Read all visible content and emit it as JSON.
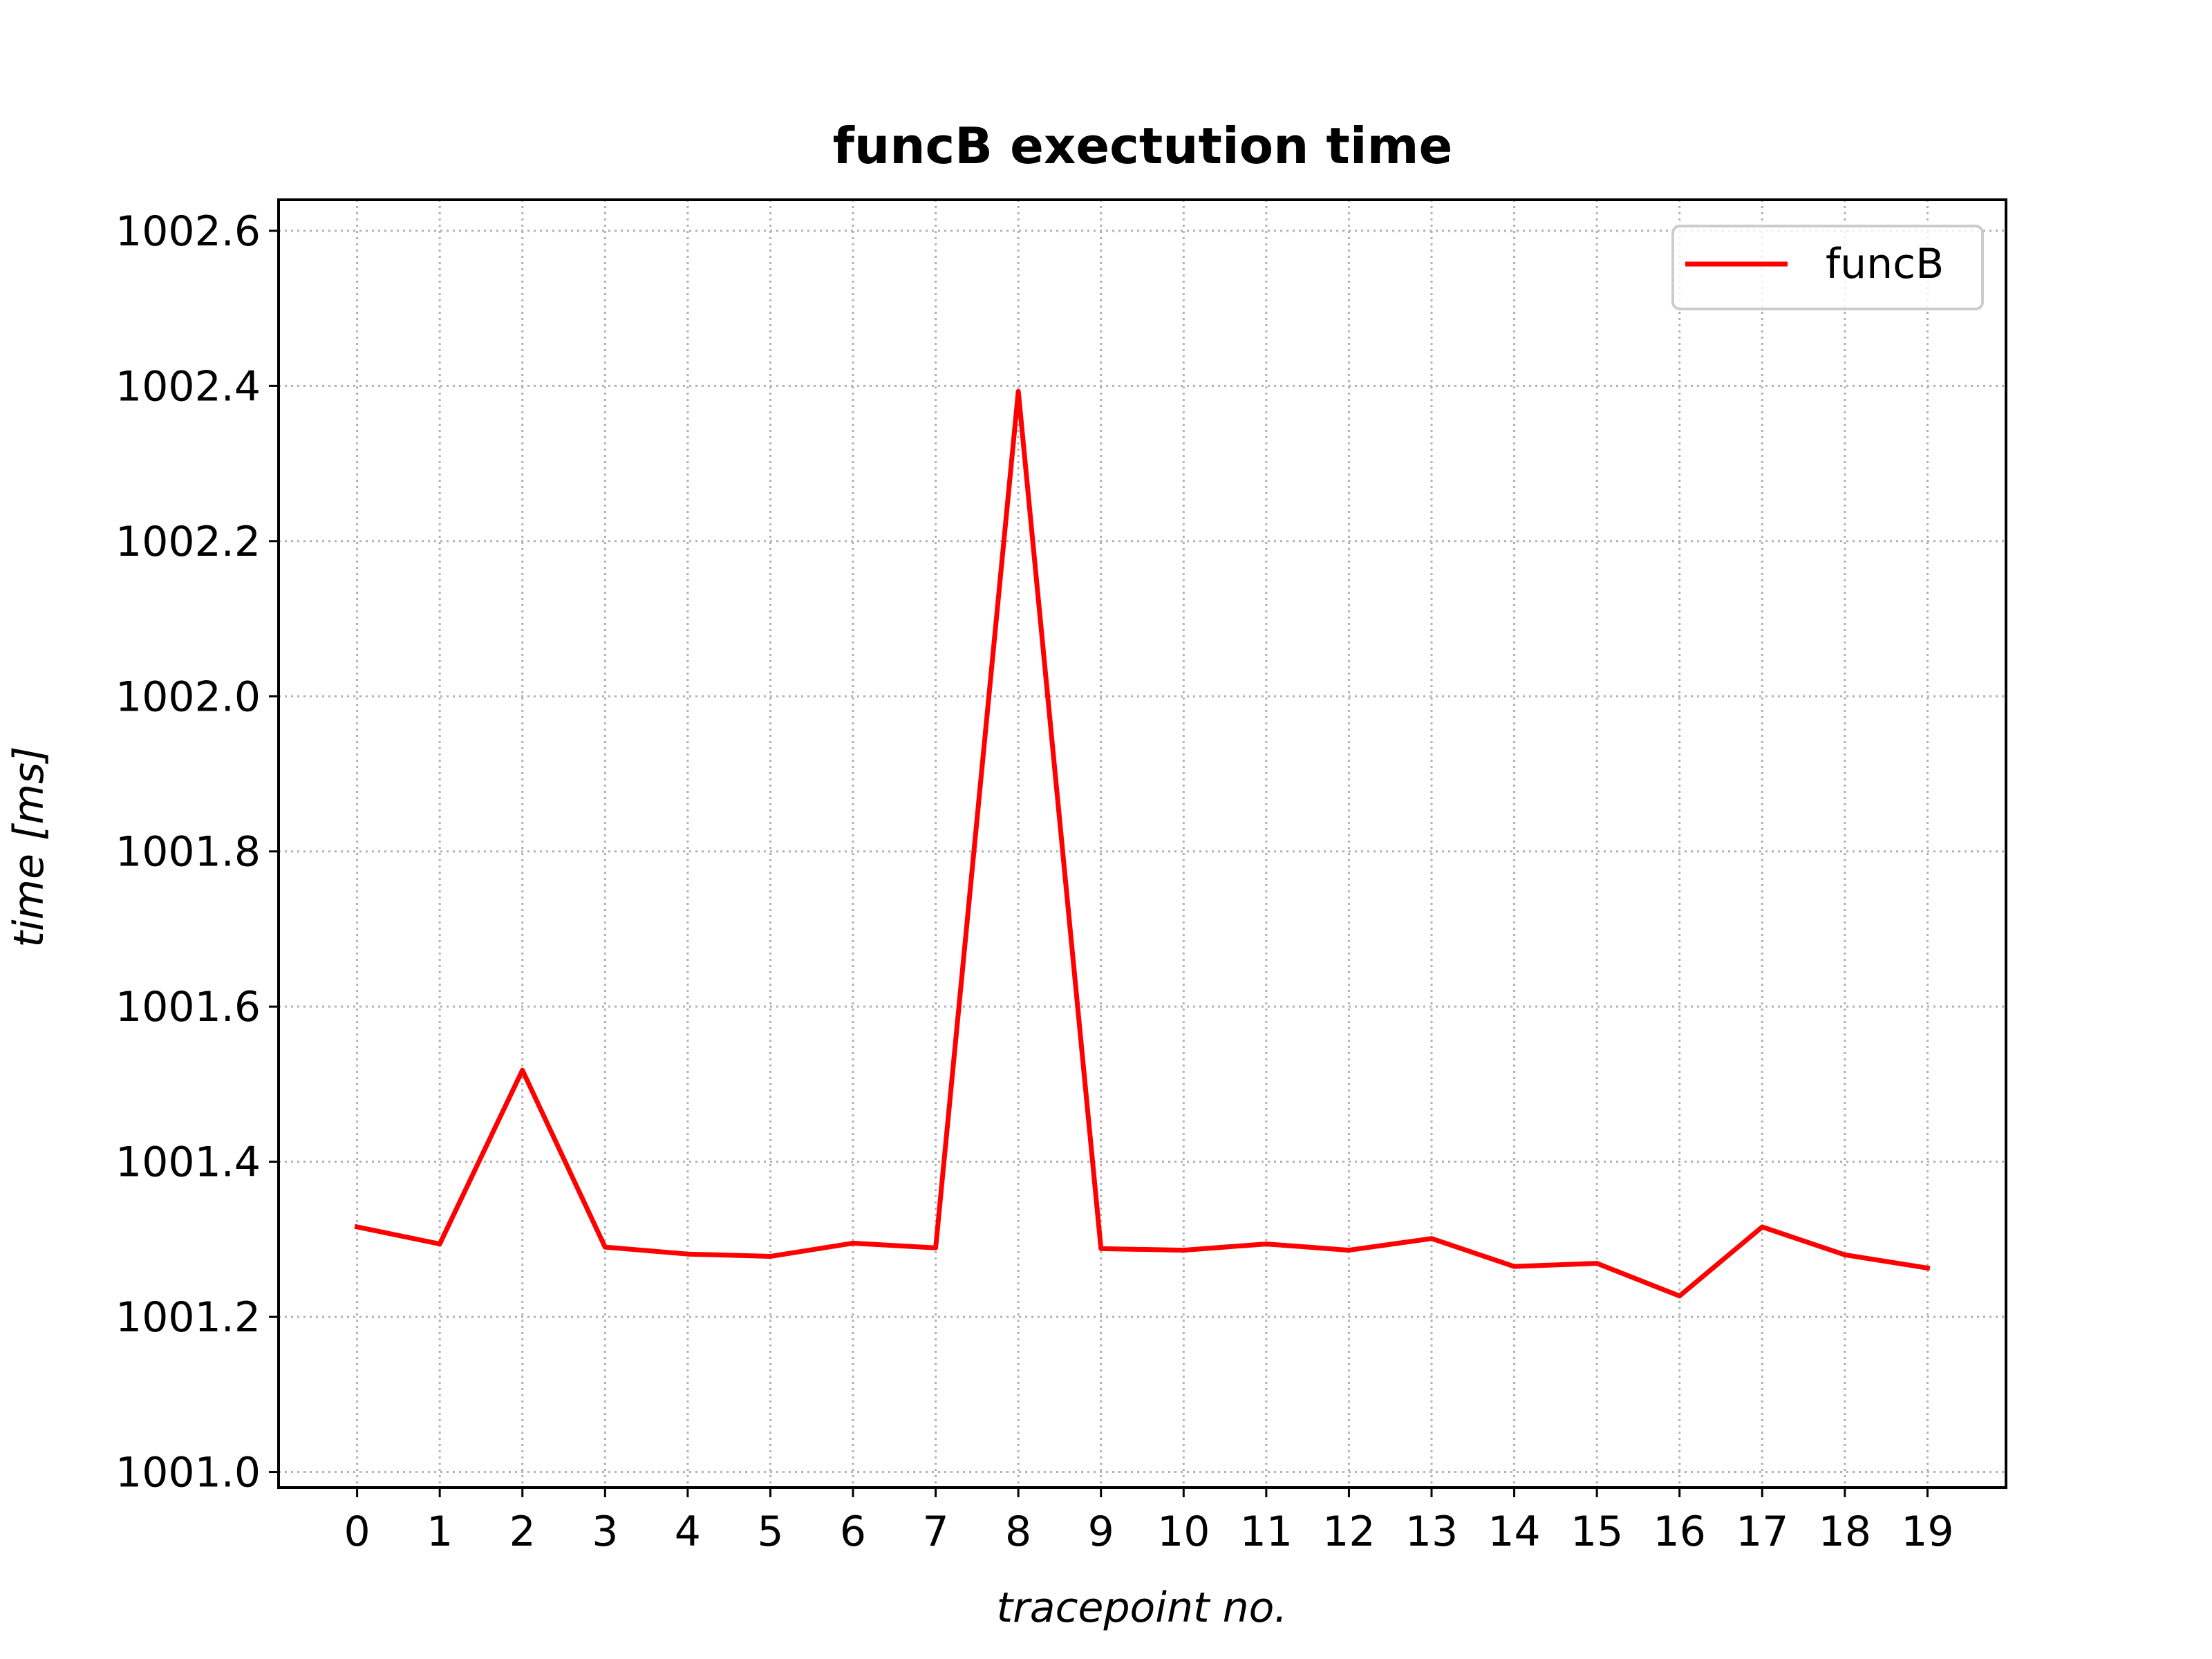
{
  "chart_data": {
    "type": "line",
    "title": "funcB exectution time",
    "xlabel": "tracepoint no.",
    "ylabel": "time [ms]",
    "x": [
      0,
      1,
      2,
      3,
      4,
      5,
      6,
      7,
      8,
      9,
      10,
      11,
      12,
      13,
      14,
      15,
      16,
      17,
      18,
      19
    ],
    "xticks": [
      "0",
      "1",
      "2",
      "3",
      "4",
      "5",
      "6",
      "7",
      "8",
      "9",
      "10",
      "11",
      "12",
      "13",
      "14",
      "15",
      "16",
      "17",
      "18",
      "19"
    ],
    "yticks": [
      "1001.0",
      "1001.2",
      "1001.4",
      "1001.6",
      "1001.8",
      "1002.0",
      "1002.2",
      "1002.4",
      "1002.6"
    ],
    "ytick_values": [
      1001.0,
      1001.2,
      1001.4,
      1001.6,
      1001.8,
      1002.0,
      1002.2,
      1002.4,
      1002.6
    ],
    "ylim": [
      1000.98,
      1002.64
    ],
    "xlim": [
      -0.95,
      19.95
    ],
    "grid": true,
    "legend_position": "top-right",
    "series": [
      {
        "name": "funcB",
        "color": "#ff0000",
        "values": [
          1001.316,
          1001.294,
          1001.518,
          1001.29,
          1001.281,
          1001.278,
          1001.295,
          1001.289,
          1002.393,
          1001.288,
          1001.286,
          1001.294,
          1001.286,
          1001.301,
          1001.265,
          1001.269,
          1001.227,
          1001.316,
          1001.28,
          1001.263
        ]
      }
    ]
  }
}
